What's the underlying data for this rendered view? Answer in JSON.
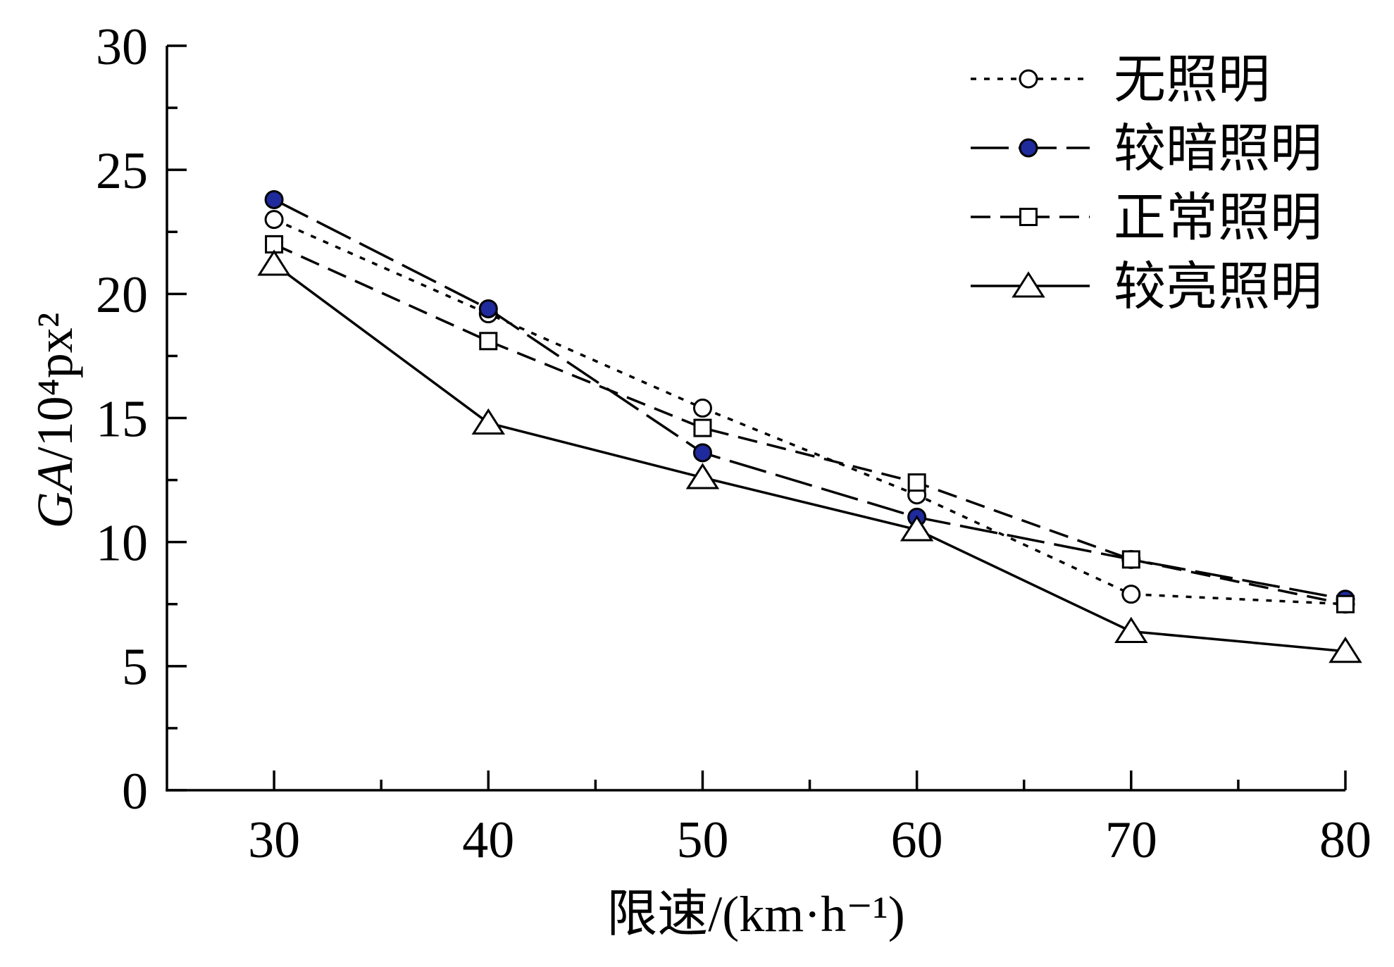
{
  "chart_data": {
    "type": "line",
    "xlabel": "限速/(km·h⁻¹)",
    "ylabel": "GA/10⁴px²",
    "xlim": [
      25,
      80
    ],
    "ylim": [
      0,
      30
    ],
    "xticks": [
      30,
      40,
      50,
      60,
      70,
      80
    ],
    "yticks": [
      0,
      5,
      10,
      15,
      20,
      25,
      30
    ],
    "grid": false,
    "legend_position": "top-right",
    "x": [
      30,
      40,
      50,
      60,
      70,
      80
    ],
    "series": [
      {
        "name": "无照明",
        "marker": "circle-open",
        "line_style": "dotted",
        "marker_color": "#ffffff",
        "values": [
          23.0,
          19.2,
          15.4,
          11.9,
          7.9,
          7.5
        ]
      },
      {
        "name": "较暗照明",
        "marker": "circle-filled",
        "line_style": "long-dash",
        "marker_color": "#1f2a9c",
        "values": [
          23.8,
          19.4,
          13.6,
          11.0,
          9.3,
          7.7
        ]
      },
      {
        "name": "正常照明",
        "marker": "square-open",
        "line_style": "dash",
        "marker_color": "#ffffff",
        "values": [
          22.0,
          18.1,
          14.6,
          12.4,
          9.3,
          7.5
        ]
      },
      {
        "name": "较亮照明",
        "marker": "triangle-open",
        "line_style": "solid",
        "marker_color": "#ffffff",
        "values": [
          21.2,
          14.8,
          12.6,
          10.5,
          6.4,
          5.6
        ]
      }
    ]
  }
}
